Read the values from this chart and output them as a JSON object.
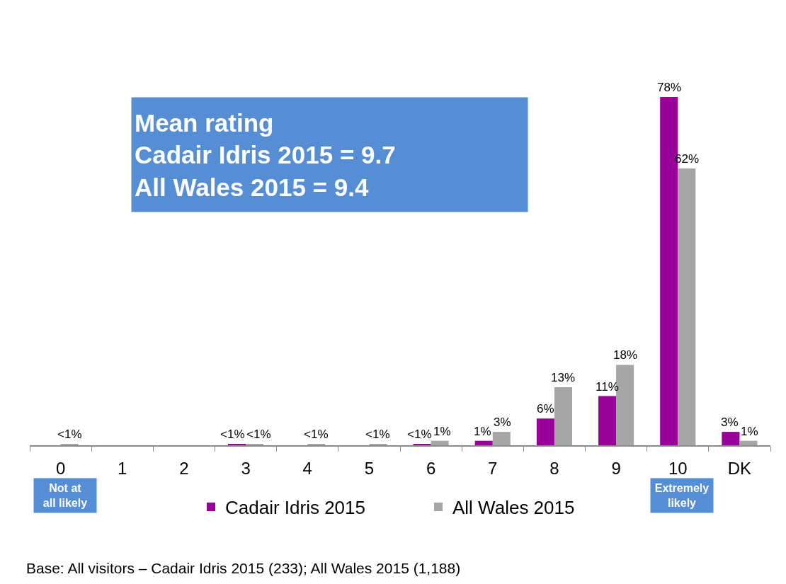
{
  "chart_data": {
    "type": "bar",
    "categories": [
      "0",
      "1",
      "2",
      "3",
      "4",
      "5",
      "6",
      "7",
      "8",
      "9",
      "10",
      "DK"
    ],
    "series": [
      {
        "name": "Cadair Idris 2015",
        "color": "#990099",
        "values": [
          null,
          null,
          null,
          0.3,
          null,
          null,
          0.3,
          1,
          6,
          11,
          78,
          3
        ],
        "value_labels": [
          null,
          null,
          null,
          "<1%",
          null,
          null,
          "<1%",
          "1%",
          "6%",
          "11%",
          "78%",
          "3%"
        ]
      },
      {
        "name": "All Wales 2015",
        "color": "#a6a6a6",
        "values": [
          0.3,
          null,
          null,
          0.3,
          0.3,
          0.3,
          1,
          3,
          13,
          18,
          62,
          1
        ],
        "value_labels": [
          "<1%",
          null,
          null,
          "<1%",
          "<1%",
          "<1%",
          "1%",
          "3%",
          "13%",
          "18%",
          "62%",
          "1%"
        ]
      }
    ],
    "tick_labels": "x",
    "legend": "bottom",
    "annotations": [
      "Mean rating",
      "Cadair Idris 2015 = 9.7",
      "All Wales 2015 = 9.4",
      "Not at all likely",
      "Extremely likely",
      "Base: All visitors – Cadair Idris 2015 (233); All Wales 2015 (1,188)"
    ]
  }
}
